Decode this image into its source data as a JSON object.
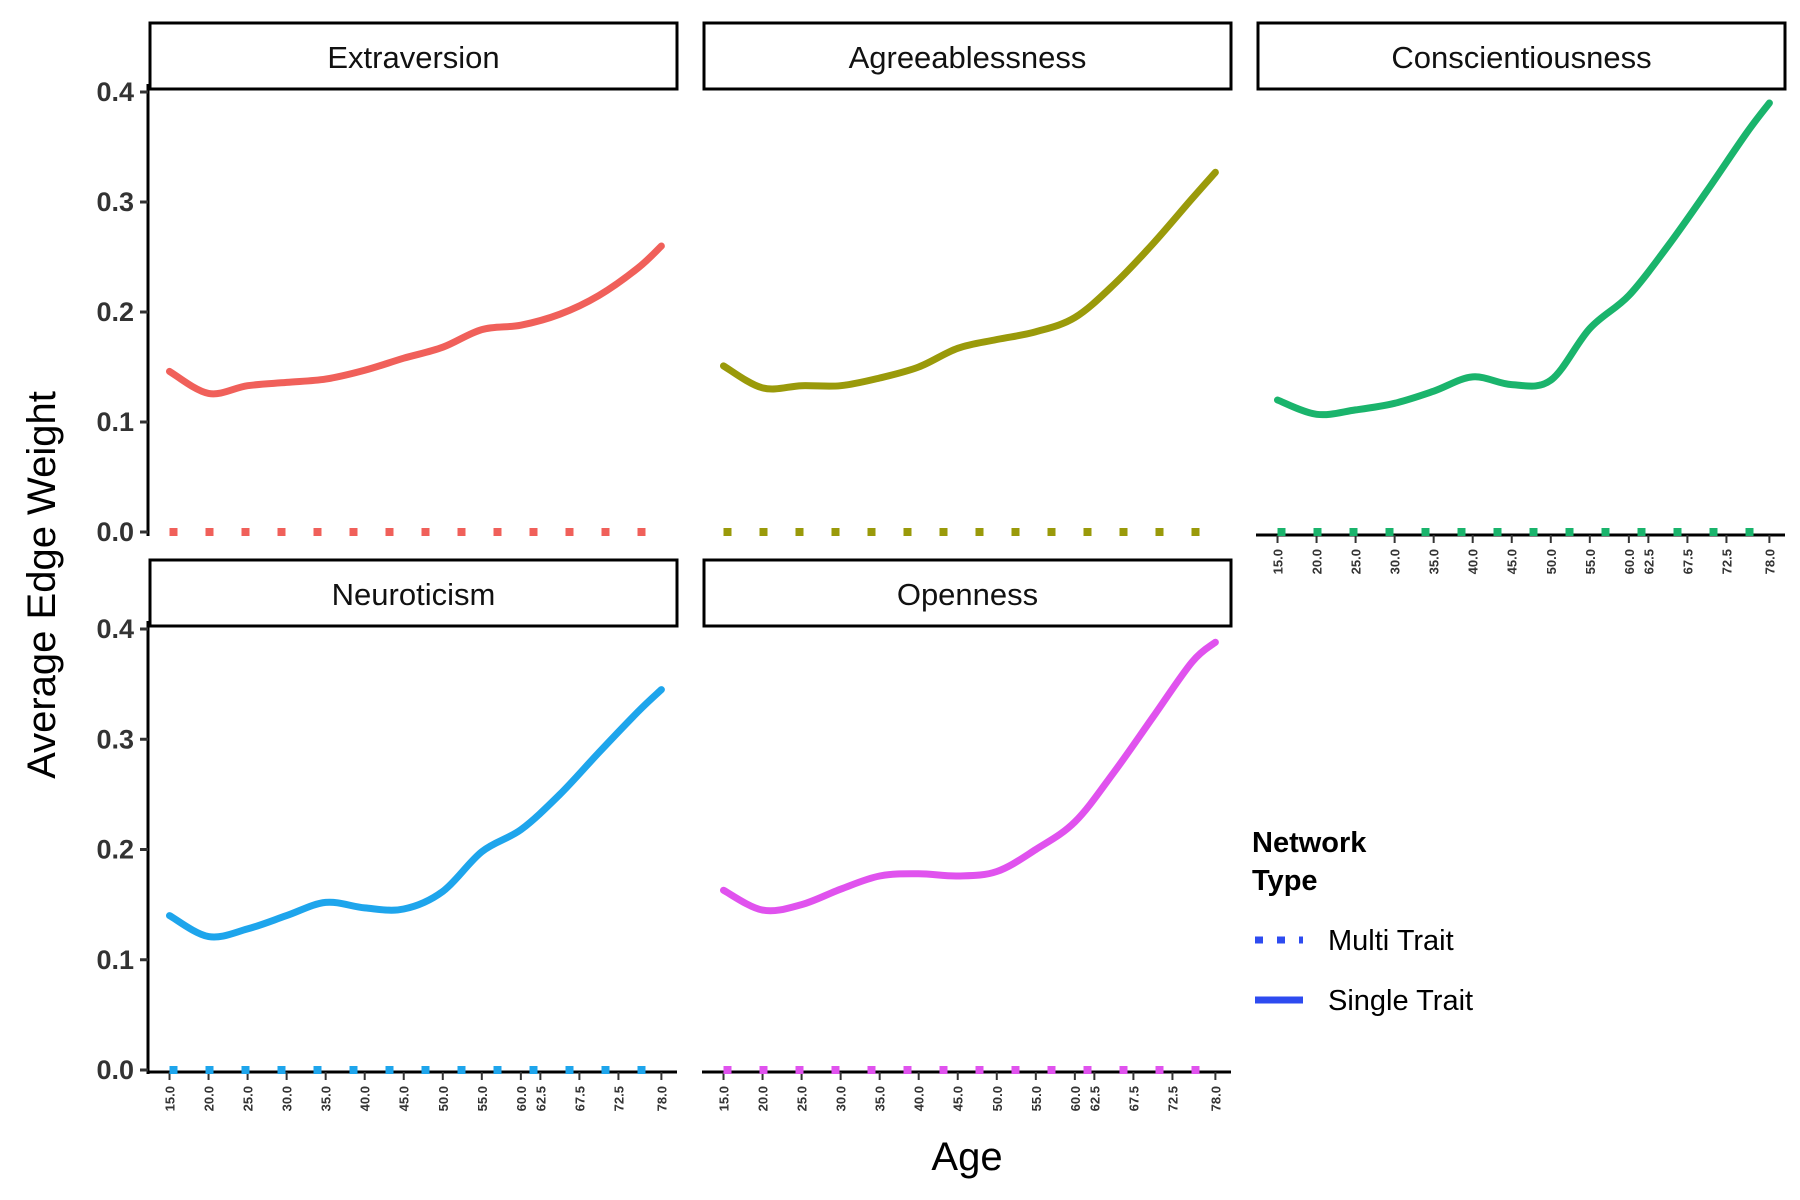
{
  "chart_data": {
    "type": "line",
    "xlabel": "Age",
    "ylabel": "Average Edge Weight",
    "ylim": [
      0,
      0.4
    ],
    "yticks": [
      0.0,
      0.1,
      0.2,
      0.3,
      0.4
    ],
    "ytick_labels": [
      "0.0",
      "0.1",
      "0.2",
      "0.3",
      "0.4"
    ],
    "xlim": [
      12.5,
      80.0
    ],
    "xticks": [
      15.0,
      20.0,
      25.0,
      30.0,
      35.0,
      40.0,
      45.0,
      50.0,
      55.0,
      60.0,
      62.5,
      67.5,
      72.5,
      78.0
    ],
    "xtick_labels": [
      "15.0",
      "20.0",
      "25.0",
      "30.0",
      "35.0",
      "40.0",
      "45.0",
      "50.0",
      "55.0",
      "60.0",
      "62.5",
      "67.5",
      "72.5",
      "78.0"
    ],
    "grid": false,
    "legend": {
      "title": "Network Type",
      "title_lines": [
        "Network",
        "Type"
      ],
      "position": "right",
      "entries": [
        {
          "label": "Multi Trait",
          "line": "dotted",
          "color": "#2d4bf0"
        },
        {
          "label": "Single Trait",
          "line": "solid",
          "color": "#2d4bf0"
        }
      ]
    },
    "x_sample": [
      15,
      20,
      25,
      30,
      35,
      40,
      45,
      50,
      55,
      60,
      65,
      70,
      75,
      78
    ],
    "panels": [
      {
        "name": "Extraversion",
        "color": "#f0605a",
        "series": [
          {
            "name": "Single Trait",
            "values": [
              0.146,
              0.126,
              0.133,
              0.136,
              0.139,
              0.147,
              0.158,
              0.168,
              0.184,
              0.188,
              0.198,
              0.215,
              0.24,
              0.26
            ]
          },
          {
            "name": "Multi Trait",
            "values": [
              0,
              0,
              0,
              0,
              0,
              0,
              0,
              0,
              0,
              0,
              0,
              0,
              0,
              0
            ]
          }
        ]
      },
      {
        "name": "Agreeablessness",
        "color": "#9a9a0a",
        "series": [
          {
            "name": "Single Trait",
            "values": [
              0.151,
              0.131,
              0.133,
              0.133,
              0.14,
              0.15,
              0.167,
              0.175,
              0.182,
              0.195,
              0.225,
              0.262,
              0.303,
              0.327
            ]
          },
          {
            "name": "Multi Trait",
            "values": [
              0,
              0,
              0,
              0,
              0,
              0,
              0,
              0,
              0,
              0,
              0,
              0,
              0,
              0
            ]
          }
        ]
      },
      {
        "name": "Conscientiousness",
        "color": "#1ab46c",
        "series": [
          {
            "name": "Single Trait",
            "values": [
              0.12,
              0.107,
              0.111,
              0.117,
              0.128,
              0.141,
              0.134,
              0.138,
              0.185,
              0.215,
              0.26,
              0.31,
              0.362,
              0.39
            ]
          },
          {
            "name": "Multi Trait",
            "values": [
              0,
              0,
              0,
              0,
              0,
              0,
              0,
              0,
              0,
              0,
              0,
              0,
              0,
              0
            ]
          }
        ]
      },
      {
        "name": "Neuroticism",
        "color": "#1ea5ec",
        "series": [
          {
            "name": "Single Trait",
            "values": [
              0.14,
              0.121,
              0.128,
              0.14,
              0.152,
              0.147,
              0.146,
              0.162,
              0.198,
              0.218,
              0.25,
              0.288,
              0.325,
              0.345
            ]
          },
          {
            "name": "Multi Trait",
            "values": [
              0,
              0,
              0,
              0,
              0,
              0,
              0,
              0,
              0,
              0,
              0,
              0,
              0,
              0
            ]
          }
        ]
      },
      {
        "name": "Openness",
        "color": "#e052ee",
        "series": [
          {
            "name": "Single Trait",
            "values": [
              0.163,
              0.145,
              0.15,
              0.164,
              0.176,
              0.178,
              0.176,
              0.18,
              0.2,
              0.225,
              0.27,
              0.32,
              0.37,
              0.388
            ]
          },
          {
            "name": "Multi Trait",
            "values": [
              0,
              0,
              0,
              0,
              0,
              0,
              0,
              0,
              0,
              0,
              0,
              0,
              0,
              0
            ]
          }
        ]
      }
    ]
  }
}
